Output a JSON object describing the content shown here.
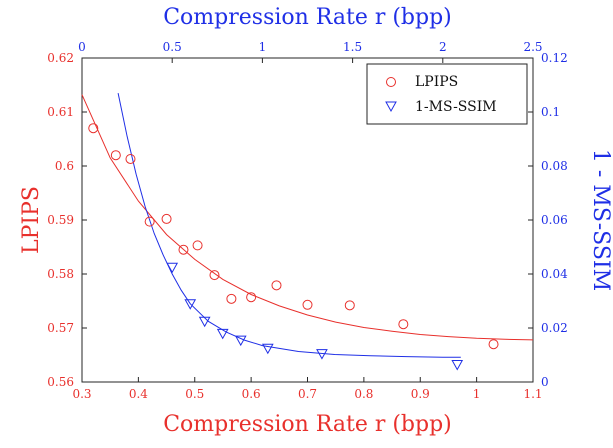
{
  "colors": {
    "lpips": "#e8302c",
    "msssim": "#1f2fe6",
    "axes": "#262626",
    "legend_border": "#262626"
  },
  "chart_data": {
    "type": "scatter",
    "legend_position": "top-right",
    "grid": false,
    "axes": {
      "x_bottom": {
        "label": "Compression Rate r (bpp)",
        "range": [
          0.3,
          1.1
        ],
        "ticks": [
          0.3,
          0.4,
          0.5,
          0.6,
          0.7,
          0.8,
          0.9,
          1.0,
          1.1
        ],
        "tick_labels": [
          "0.3",
          "0.4",
          "0.5",
          "0.6",
          "0.7",
          "0.8",
          "0.9",
          "1",
          "1.1"
        ]
      },
      "x_top": {
        "label": "Compression Rate r (bpp)",
        "range": [
          0,
          2.5
        ],
        "ticks": [
          0,
          0.5,
          1,
          1.5,
          2,
          2.5
        ],
        "tick_labels": [
          "0",
          "0.5",
          "1",
          "1.5",
          "2",
          "2.5"
        ]
      },
      "y_left": {
        "label": "LPIPS",
        "range": [
          0.56,
          0.62
        ],
        "ticks": [
          0.56,
          0.57,
          0.58,
          0.59,
          0.6,
          0.61,
          0.62
        ],
        "tick_labels": [
          "0.56",
          "0.57",
          "0.58",
          "0.59",
          "0.6",
          "0.61",
          "0.62"
        ]
      },
      "y_right": {
        "label": "1 - MS-SSIM",
        "range": [
          0,
          0.12
        ],
        "ticks": [
          0,
          0.02,
          0.04,
          0.06,
          0.08,
          0.1,
          0.12
        ],
        "tick_labels": [
          "0",
          "0.02",
          "0.04",
          "0.06",
          "0.08",
          "0.1",
          "0.12"
        ]
      }
    },
    "series": [
      {
        "name": "LPIPS",
        "marker": "circle",
        "x_axis": "bottom",
        "y_axis": "left",
        "points": [
          [
            0.32,
            0.607
          ],
          [
            0.36,
            0.602
          ],
          [
            0.386,
            0.6013
          ],
          [
            0.42,
            0.5897
          ],
          [
            0.45,
            0.5902
          ],
          [
            0.48,
            0.5845
          ],
          [
            0.505,
            0.5853
          ],
          [
            0.535,
            0.5798
          ],
          [
            0.565,
            0.5754
          ],
          [
            0.6,
            0.5757
          ],
          [
            0.645,
            0.5779
          ],
          [
            0.7,
            0.5743
          ],
          [
            0.775,
            0.5742
          ],
          [
            0.87,
            0.5707
          ],
          [
            1.03,
            0.567
          ]
        ],
        "fit": {
          "x": [
            0.3,
            0.35,
            0.4,
            0.45,
            0.5,
            0.55,
            0.6,
            0.65,
            0.7,
            0.75,
            0.8,
            0.85,
            0.9,
            0.95,
            1.0,
            1.05,
            1.1
          ],
          "y": [
            0.6132,
            0.6015,
            0.5935,
            0.5873,
            0.5827,
            0.579,
            0.5762,
            0.5741,
            0.5724,
            0.5711,
            0.5701,
            0.5694,
            0.5688,
            0.5684,
            0.5681,
            0.5679,
            0.5678
          ]
        }
      },
      {
        "name": "1-MS-SSIM",
        "marker": "triangle-down",
        "x_axis": "top",
        "y_axis": "right",
        "points": [
          [
            0.5,
            0.0425
          ],
          [
            0.6,
            0.029
          ],
          [
            0.68,
            0.0225
          ],
          [
            0.78,
            0.018
          ],
          [
            0.88,
            0.0155
          ],
          [
            1.03,
            0.0125
          ],
          [
            1.33,
            0.0105
          ],
          [
            2.08,
            0.0065
          ]
        ],
        "fit": {
          "x": [
            0.2,
            0.25,
            0.3,
            0.35,
            0.4,
            0.45,
            0.5,
            0.55,
            0.6,
            0.7,
            0.8,
            0.9,
            1.0,
            1.2,
            1.4,
            1.6,
            1.8,
            2.0,
            2.1
          ],
          "y": [
            0.107,
            0.091,
            0.077,
            0.065,
            0.055,
            0.047,
            0.04,
            0.034,
            0.029,
            0.0225,
            0.0185,
            0.0155,
            0.0135,
            0.0113,
            0.0102,
            0.0097,
            0.0094,
            0.0092,
            0.0092
          ]
        }
      }
    ]
  }
}
